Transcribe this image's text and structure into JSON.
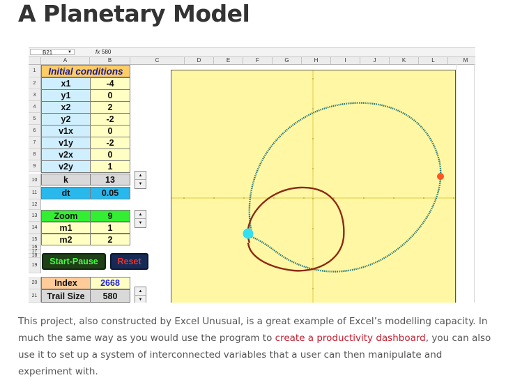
{
  "page_title": "A Planetary Model",
  "formula_bar": {
    "cell_ref": "B21",
    "fx": "fx",
    "value": "580"
  },
  "columns": [
    "A",
    "B",
    "C",
    "D",
    "E",
    "F",
    "G",
    "H",
    "I",
    "J",
    "K",
    "L",
    "M"
  ],
  "rows": [
    "1",
    "2",
    "3",
    "4",
    "5",
    "6",
    "7",
    "8",
    "9",
    "10",
    "11",
    "12",
    "13",
    "14",
    "15",
    "16",
    "17",
    "18",
    "19",
    "20",
    "21"
  ],
  "sheet": {
    "title": "Initial conditions",
    "conditions": [
      {
        "label": "x1",
        "value": "-4"
      },
      {
        "label": "y1",
        "value": "0"
      },
      {
        "label": "x2",
        "value": "2"
      },
      {
        "label": "y2",
        "value": "-2"
      },
      {
        "label": "v1x",
        "value": "0"
      },
      {
        "label": "v1y",
        "value": "-2"
      },
      {
        "label": "v2x",
        "value": "0"
      },
      {
        "label": "v2y",
        "value": "1"
      }
    ],
    "k": {
      "label": "k",
      "value": "13"
    },
    "dt": {
      "label": "dt",
      "value": "0.05"
    },
    "zoom": {
      "label": "Zoom",
      "value": "9"
    },
    "m1": {
      "label": "m1",
      "value": "1"
    },
    "m2": {
      "label": "m2",
      "value": "2"
    },
    "start_pause_label": "Start-Pause",
    "reset_label": "Reset",
    "index": {
      "label": "Index",
      "value": "2668"
    },
    "trail_size": {
      "label": "Trail Size",
      "value": "580"
    }
  },
  "chart": {
    "background_color": "#fff7a3",
    "orbit1_color": "#2a7a7a",
    "orbit2_color": "#8b2a14",
    "body1_color": "#33e0f0",
    "body2_color": "#ff5522"
  },
  "article": {
    "text_before_link": "This project, also constructed by Excel Unusual, is a great example of Excel’s modelling capacity. In much the same way as you would use the program to ",
    "link_text": "create a productivity dashboard",
    "text_after_link": ", you can also use it to set up a system of interconnected variables that a user can then manipulate and experiment with."
  }
}
